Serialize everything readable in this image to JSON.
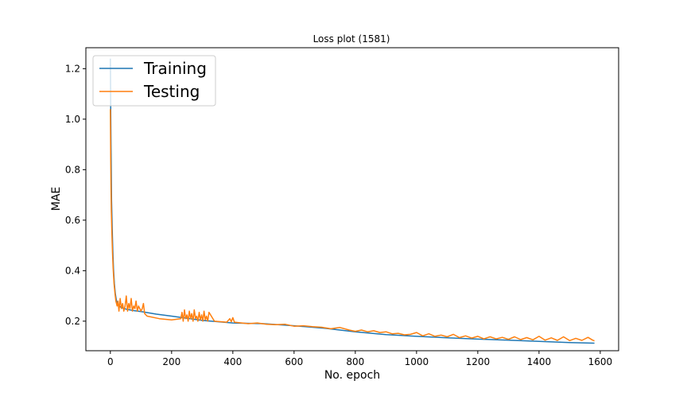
{
  "chart_data": {
    "type": "line",
    "title": "Loss plot (1581)",
    "xlabel": "No. epoch",
    "ylabel": "MAE",
    "xlim": [
      -80,
      1660
    ],
    "ylim": [
      0.083,
      1.283
    ],
    "xticks": [
      0,
      200,
      400,
      600,
      800,
      1000,
      1200,
      1400,
      1600
    ],
    "yticks": [
      0.2,
      0.4,
      0.6,
      0.8,
      1.0,
      1.2
    ],
    "xtick_labels": [
      "0",
      "200",
      "400",
      "600",
      "800",
      "1000",
      "1200",
      "1400",
      "1600"
    ],
    "ytick_labels": [
      "0.2",
      "0.4",
      "0.6",
      "0.8",
      "1.0",
      "1.2"
    ],
    "grid": false,
    "legend_position": "top-left",
    "series": [
      {
        "name": "Training",
        "color": "#1f77b4",
        "x": [
          0,
          1,
          2,
          3,
          4,
          6,
          8,
          10,
          13,
          16,
          20,
          25,
          30,
          40,
          50,
          70,
          100,
          150,
          200,
          300,
          400,
          500,
          600,
          700,
          800,
          900,
          1000,
          1100,
          1200,
          1300,
          1400,
          1500,
          1581
        ],
        "y": [
          1.24,
          1.05,
          0.9,
          0.78,
          0.68,
          0.57,
          0.48,
          0.41,
          0.35,
          0.31,
          0.28,
          0.265,
          0.258,
          0.252,
          0.248,
          0.243,
          0.238,
          0.228,
          0.22,
          0.203,
          0.193,
          0.19,
          0.182,
          0.172,
          0.158,
          0.147,
          0.14,
          0.134,
          0.129,
          0.125,
          0.12,
          0.115,
          0.113
        ]
      },
      {
        "name": "Testing",
        "color": "#ff7f0e",
        "x": [
          0,
          1,
          2,
          3,
          5,
          7,
          9,
          12,
          15,
          18,
          22,
          25,
          28,
          32,
          36,
          40,
          44,
          48,
          52,
          56,
          60,
          64,
          68,
          72,
          76,
          80,
          84,
          88,
          92,
          96,
          100,
          104,
          108,
          112,
          120,
          160,
          200,
          230,
          234,
          238,
          242,
          246,
          250,
          254,
          258,
          262,
          266,
          270,
          274,
          278,
          282,
          286,
          290,
          294,
          298,
          302,
          306,
          310,
          314,
          318,
          322,
          340,
          360,
          380,
          390,
          395,
          400,
          405,
          420,
          450,
          480,
          510,
          540,
          570,
          600,
          630,
          660,
          690,
          720,
          750,
          780,
          800,
          820,
          840,
          860,
          880,
          900,
          920,
          940,
          960,
          980,
          1000,
          1020,
          1040,
          1060,
          1080,
          1100,
          1120,
          1140,
          1160,
          1180,
          1200,
          1220,
          1240,
          1260,
          1280,
          1300,
          1320,
          1340,
          1360,
          1380,
          1400,
          1420,
          1440,
          1460,
          1480,
          1500,
          1520,
          1540,
          1560,
          1575,
          1581
        ],
        "y": [
          1.04,
          0.86,
          0.74,
          0.64,
          0.55,
          0.47,
          0.41,
          0.35,
          0.31,
          0.28,
          0.26,
          0.28,
          0.24,
          0.29,
          0.25,
          0.27,
          0.24,
          0.26,
          0.3,
          0.24,
          0.27,
          0.25,
          0.29,
          0.24,
          0.26,
          0.25,
          0.28,
          0.24,
          0.26,
          0.25,
          0.24,
          0.25,
          0.27,
          0.23,
          0.22,
          0.21,
          0.205,
          0.21,
          0.235,
          0.2,
          0.245,
          0.21,
          0.225,
          0.2,
          0.24,
          0.21,
          0.23,
          0.2,
          0.245,
          0.21,
          0.22,
          0.2,
          0.235,
          0.205,
          0.225,
          0.2,
          0.24,
          0.205,
          0.22,
          0.2,
          0.235,
          0.2,
          0.198,
          0.196,
          0.21,
          0.198,
          0.214,
          0.196,
          0.194,
          0.19,
          0.193,
          0.188,
          0.186,
          0.188,
          0.18,
          0.182,
          0.178,
          0.176,
          0.17,
          0.175,
          0.165,
          0.16,
          0.165,
          0.158,
          0.162,
          0.155,
          0.158,
          0.15,
          0.152,
          0.146,
          0.148,
          0.155,
          0.142,
          0.15,
          0.14,
          0.145,
          0.138,
          0.148,
          0.135,
          0.142,
          0.133,
          0.14,
          0.13,
          0.138,
          0.13,
          0.136,
          0.128,
          0.138,
          0.127,
          0.135,
          0.126,
          0.14,
          0.125,
          0.134,
          0.124,
          0.138,
          0.123,
          0.132,
          0.124,
          0.136,
          0.125,
          0.122
        ]
      }
    ]
  }
}
